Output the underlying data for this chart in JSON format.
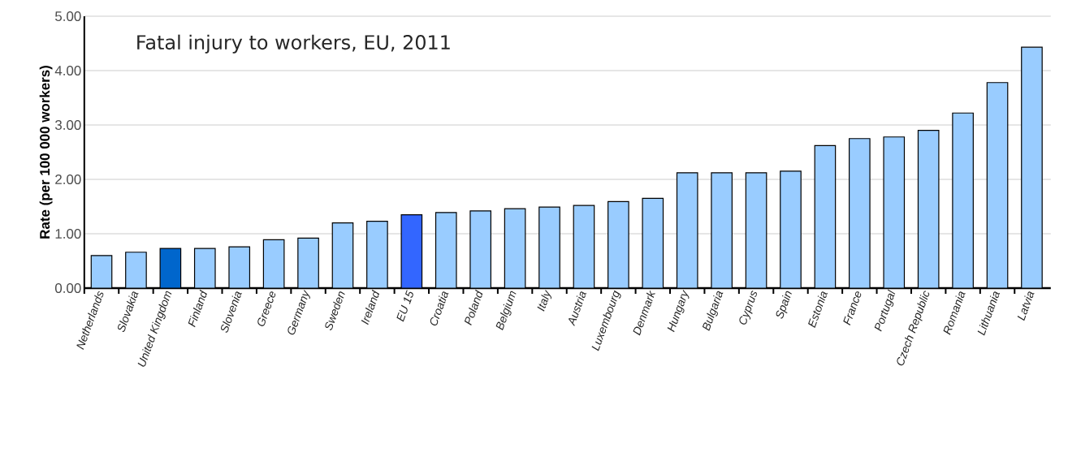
{
  "chart_data": {
    "type": "bar",
    "title": "Fatal injury to workers, EU, 2011",
    "ylabel": "Rate (per 100 000 workers)",
    "categories": [
      "Netherlands",
      "Slovakia",
      "United Kingdom",
      "Finland",
      "Slovenia",
      "Greece",
      "Germany",
      "Sweden",
      "Ireland",
      "EU 15",
      "Croatia",
      "Poland",
      "Belgium",
      "Italy",
      "Austria",
      "Luxembourg",
      "Denmark",
      "Hungary",
      "Bulgaria",
      "Cyprus",
      "Spain",
      "Estonia",
      "France",
      "Portugal",
      "Czech Republic",
      "Romania",
      "Lithuania",
      "Latvia"
    ],
    "values": [
      0.6,
      0.66,
      0.73,
      0.73,
      0.76,
      0.89,
      0.92,
      1.2,
      1.23,
      1.35,
      1.39,
      1.42,
      1.46,
      1.49,
      1.52,
      1.59,
      1.65,
      2.12,
      2.12,
      2.12,
      2.15,
      2.62,
      2.75,
      2.78,
      2.9,
      3.22,
      3.78,
      4.43
    ],
    "colors": [
      "#99ccff",
      "#99ccff",
      "#0066cc",
      "#99ccff",
      "#99ccff",
      "#99ccff",
      "#99ccff",
      "#99ccff",
      "#99ccff",
      "#3366ff",
      "#99ccff",
      "#99ccff",
      "#99ccff",
      "#99ccff",
      "#99ccff",
      "#99ccff",
      "#99ccff",
      "#99ccff",
      "#99ccff",
      "#99ccff",
      "#99ccff",
      "#99ccff",
      "#99ccff",
      "#99ccff",
      "#99ccff",
      "#99ccff",
      "#99ccff",
      "#99ccff"
    ],
    "ylim": [
      0,
      5
    ],
    "yticks": [
      {
        "value": 0,
        "label": "0.00"
      },
      {
        "value": 1,
        "label": "1.00"
      },
      {
        "value": 2,
        "label": "2.00"
      },
      {
        "value": 3,
        "label": "3.00"
      },
      {
        "value": 4,
        "label": "4.00"
      },
      {
        "value": 5,
        "label": "5.00"
      }
    ],
    "grid": "y"
  }
}
